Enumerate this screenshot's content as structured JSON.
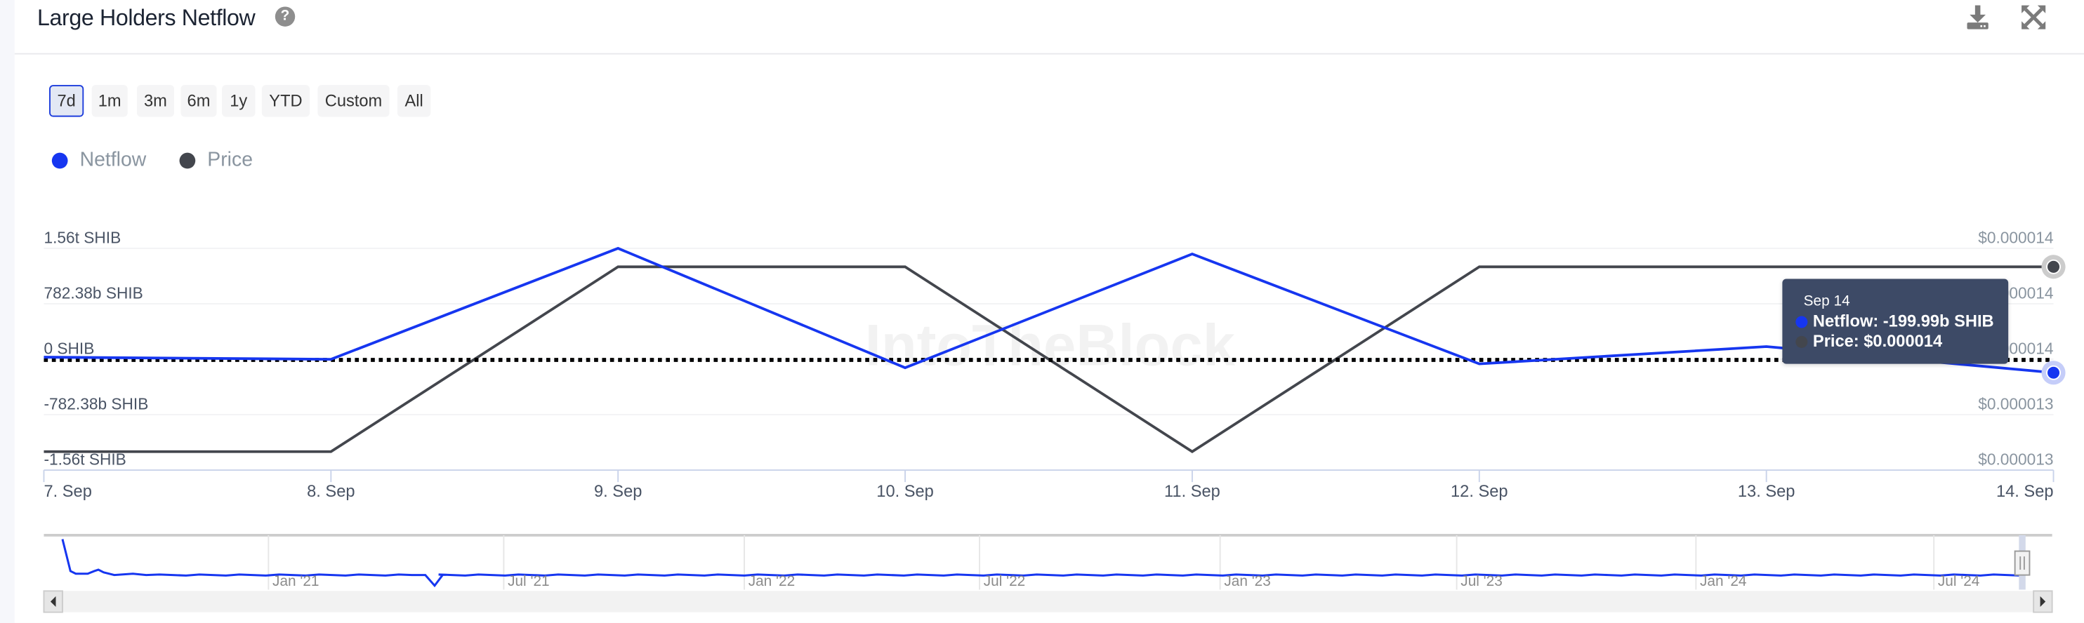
{
  "header": {
    "title": "Large Holders Netflow",
    "help_icon": "question-circle-icon",
    "download_icon": "download-icon",
    "fullscreen_icon": "expand-arrows-icon"
  },
  "ranges": [
    {
      "label": "7d",
      "active": true
    },
    {
      "label": "1m"
    },
    {
      "label": "3m"
    },
    {
      "label": "6m"
    },
    {
      "label": "1y"
    },
    {
      "label": "YTD"
    },
    {
      "label": "Custom"
    },
    {
      "label": "All"
    }
  ],
  "watermark": "IntoTheBlock",
  "colors": {
    "netflow": "#1636f0",
    "price": "#43464d",
    "tooltip_bg": "#3d4a66"
  },
  "tooltip": {
    "date": "Sep 14",
    "netflow": "Netflow: -199.99b SHIB",
    "price": "Price: $0.000014"
  },
  "chart_data": {
    "type": "line",
    "legend": [
      "Netflow",
      "Price"
    ],
    "legend_placement": "top-left",
    "grid": true,
    "categories": [
      "7. Sep",
      "8. Sep",
      "9. Sep",
      "10. Sep",
      "11. Sep",
      "12. Sep",
      "13. Sep",
      "14. Sep"
    ],
    "left_axis": {
      "ticks": [
        "1.56t SHIB",
        "782.38b SHIB",
        "0 SHIB",
        "-782.38b SHIB",
        "-1.56t SHIB"
      ],
      "ylim": [
        -1560,
        1560
      ],
      "unit": "b SHIB"
    },
    "right_axis": {
      "ticks": [
        "$0.000014",
        "$0.000014",
        "$0.000014",
        "$0.000013",
        "$0.000013"
      ],
      "ylim": [
        1.3e-05,
        1.42e-05
      ]
    },
    "series": [
      {
        "name": "Netflow",
        "axis": "left",
        "values": [
          20,
          -10,
          1560,
          -130,
          1480,
          -75,
          170,
          -199.99
        ]
      },
      {
        "name": "Price",
        "axis": "right",
        "values": [
          1.31e-05,
          1.31e-05,
          1.41e-05,
          1.41e-05,
          1.31e-05,
          1.41e-05,
          1.41e-05,
          1.41e-05
        ]
      }
    ],
    "zero_line": "dotted",
    "navigator": {
      "labels": [
        "Jan '21",
        "Jul '21",
        "Jan '22",
        "Jul '22",
        "Jan '23",
        "Jul '23",
        "Jan '24",
        "Jul '24"
      ]
    }
  }
}
